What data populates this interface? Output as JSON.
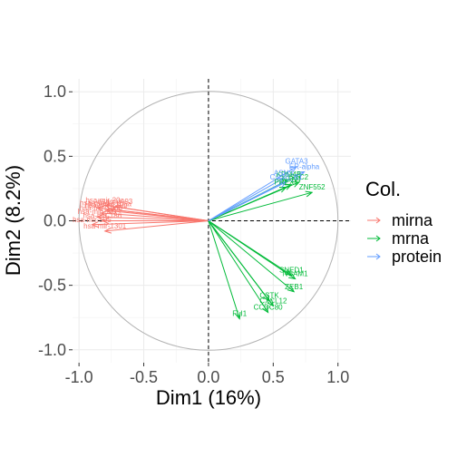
{
  "chart_data": {
    "type": "scatter",
    "subtype": "correlation-circle",
    "xlabel": "Dim1 (16%)",
    "ylabel": "Dim2 (8.2%)",
    "xlim": [
      -1.05,
      1.1
    ],
    "ylim": [
      -1.1,
      1.1
    ],
    "x_ticks": [
      -1.0,
      -0.5,
      0.0,
      0.5,
      1.0
    ],
    "x_tick_labels": [
      "-1.0",
      "-0.5",
      "0.0",
      "0.5",
      "1.0"
    ],
    "y_ticks": [
      -1.0,
      -0.5,
      0.0,
      0.5,
      1.0
    ],
    "y_tick_labels": [
      "-1.0",
      "-0.5",
      "0.0",
      "0.5",
      "1.0"
    ],
    "grid": true,
    "unit_circle": true,
    "reference_lines": [
      {
        "axis": "x",
        "value": 0,
        "style": "dashed"
      },
      {
        "axis": "y",
        "value": 0,
        "style": "dashed"
      }
    ],
    "legend": {
      "title": "Col.",
      "placement": "right",
      "entries": [
        {
          "name": "mirna",
          "color": "#F8766D"
        },
        {
          "name": "mrna",
          "color": "#00BA38"
        },
        {
          "name": "protein",
          "color": "#619CFF"
        }
      ]
    },
    "series": [
      {
        "name": "mirna",
        "color": "#F8766D",
        "vectors": [
          {
            "label": "hsa-mir-20a",
            "x": -0.8,
            "y": 0.12
          },
          {
            "label": "hsa-mir-93",
            "x": -0.72,
            "y": 0.11
          },
          {
            "label": "hsa-mir-17",
            "x": -0.86,
            "y": 0.1
          },
          {
            "label": "hsa-mir-106a",
            "x": -0.76,
            "y": 0.09
          },
          {
            "label": "hsa-mir-130b",
            "x": -0.79,
            "y": 0.08
          },
          {
            "label": "hsa-mir-106b",
            "x": -0.83,
            "y": 0.06
          },
          {
            "label": "hsa-mir-590",
            "x": -0.86,
            "y": 0.03
          },
          {
            "label": "hsa-mir-186",
            "x": -0.82,
            "y": 0.0
          },
          {
            "label": "hsa-mir-505",
            "x": -0.9,
            "y": -0.03
          },
          {
            "label": "hsa-mir-1301",
            "x": -0.8,
            "y": -0.08
          }
        ]
      },
      {
        "name": "mrna",
        "color": "#00BA38",
        "vectors": [
          {
            "label": "ZNF552",
            "x": 0.8,
            "y": 0.22
          },
          {
            "label": "KDM4B",
            "x": 0.62,
            "y": 0.32
          },
          {
            "label": "STC2",
            "x": 0.7,
            "y": 0.3
          },
          {
            "label": "NTN4",
            "x": 0.64,
            "y": 0.28
          },
          {
            "label": "PREX1",
            "x": 0.6,
            "y": 0.26
          },
          {
            "label": "SNED1",
            "x": 0.64,
            "y": -0.42
          },
          {
            "label": "NCAM1",
            "x": 0.67,
            "y": -0.45
          },
          {
            "label": "ZEB1",
            "x": 0.66,
            "y": -0.55
          },
          {
            "label": "CSTK",
            "x": 0.47,
            "y": -0.62
          },
          {
            "label": "CXCL12",
            "x": 0.5,
            "y": -0.66
          },
          {
            "label": "CCDC80",
            "x": 0.46,
            "y": -0.71
          },
          {
            "label": "FLI1",
            "x": 0.24,
            "y": -0.76
          }
        ]
      },
      {
        "name": "protein",
        "color": "#619CFF",
        "vectors": [
          {
            "label": "GATA3",
            "x": 0.68,
            "y": 0.42
          },
          {
            "label": "ER-alpha",
            "x": 0.74,
            "y": 0.38
          },
          {
            "label": "ASNS",
            "x": 0.58,
            "y": 0.33
          },
          {
            "label": "Cyclin_B1",
            "x": 0.6,
            "y": 0.3
          }
        ]
      }
    ]
  }
}
